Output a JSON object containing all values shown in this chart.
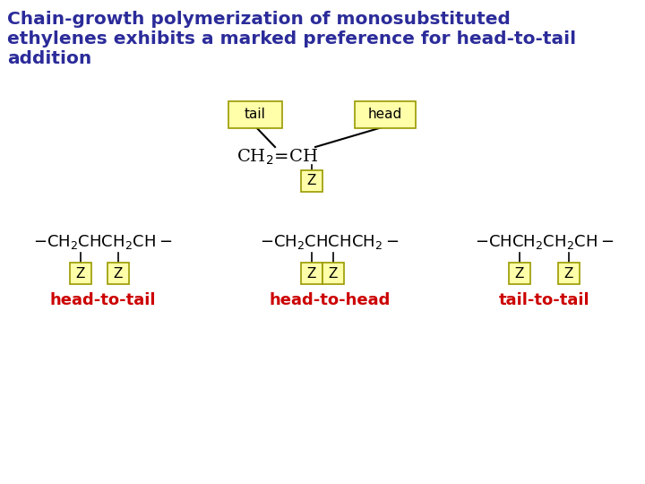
{
  "title_line1": "Chain-growth polymerization of monosubstituted",
  "title_line2": "ethylenes exhibits a marked preference for head-to-tail",
  "title_line3": "addition",
  "title_color": "#2b2b9a",
  "title_fontsize": 14.5,
  "background_color": "#ffffff",
  "box_facecolor": "#ffffaa",
  "box_edgecolor": "#999900",
  "black_color": "#000000",
  "red_color": "#cc0000",
  "chem_fontsize": 13,
  "label_fontsize": 11,
  "red_label_fontsize": 13
}
